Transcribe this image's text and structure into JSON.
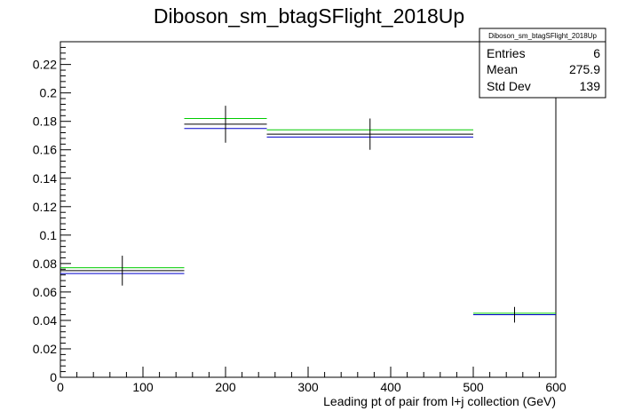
{
  "chart_data": {
    "type": "histogram",
    "title": "Diboson_sm_btagSFlight_2018Up",
    "xlabel": "Leading pt of pair from l+j collection (GeV)",
    "ylabel": "",
    "xlim": [
      0,
      600
    ],
    "ylim": [
      0,
      0.236
    ],
    "x_ticks": [
      0,
      100,
      200,
      300,
      400,
      500,
      600
    ],
    "y_ticks": [
      0,
      0.02,
      0.04,
      0.06,
      0.08,
      0.1,
      0.12,
      0.14,
      0.16,
      0.18,
      0.2,
      0.22
    ],
    "y_tick_labels": [
      "0",
      "0.02",
      "0.04",
      "0.06",
      "0.08",
      "0.1",
      "0.12",
      "0.14",
      "0.16",
      "0.18",
      "0.2",
      "0.22"
    ],
    "bins": [
      {
        "x_low": 0,
        "x_high": 150,
        "center": 75
      },
      {
        "x_low": 150,
        "x_high": 250,
        "center": 200
      },
      {
        "x_low": 250,
        "x_high": 500,
        "center": 375
      },
      {
        "x_low": 500,
        "x_high": 600,
        "center": 550
      }
    ],
    "series": [
      {
        "color": "#00cc00",
        "values": [
          0.077,
          0.182,
          0.174,
          0.045
        ]
      },
      {
        "color": "#000000",
        "values": [
          0.075,
          0.178,
          0.171,
          0.044
        ]
      },
      {
        "color": "#0000cc",
        "values": [
          0.073,
          0.175,
          0.169,
          0.044
        ]
      }
    ],
    "error_bars": {
      "color": "#000000",
      "center_series": 1,
      "errors": [
        0.0105,
        0.013,
        0.011,
        0.0055
      ]
    },
    "grid": false,
    "legend": "none",
    "stats_box": {
      "position": "top-right",
      "title": "Diboson_sm_btagSFlight_2018Up",
      "rows": [
        {
          "label": "Entries",
          "value": "6"
        },
        {
          "label": "Mean",
          "value": "275.9"
        },
        {
          "label": "Std Dev",
          "value": "139"
        }
      ]
    }
  }
}
